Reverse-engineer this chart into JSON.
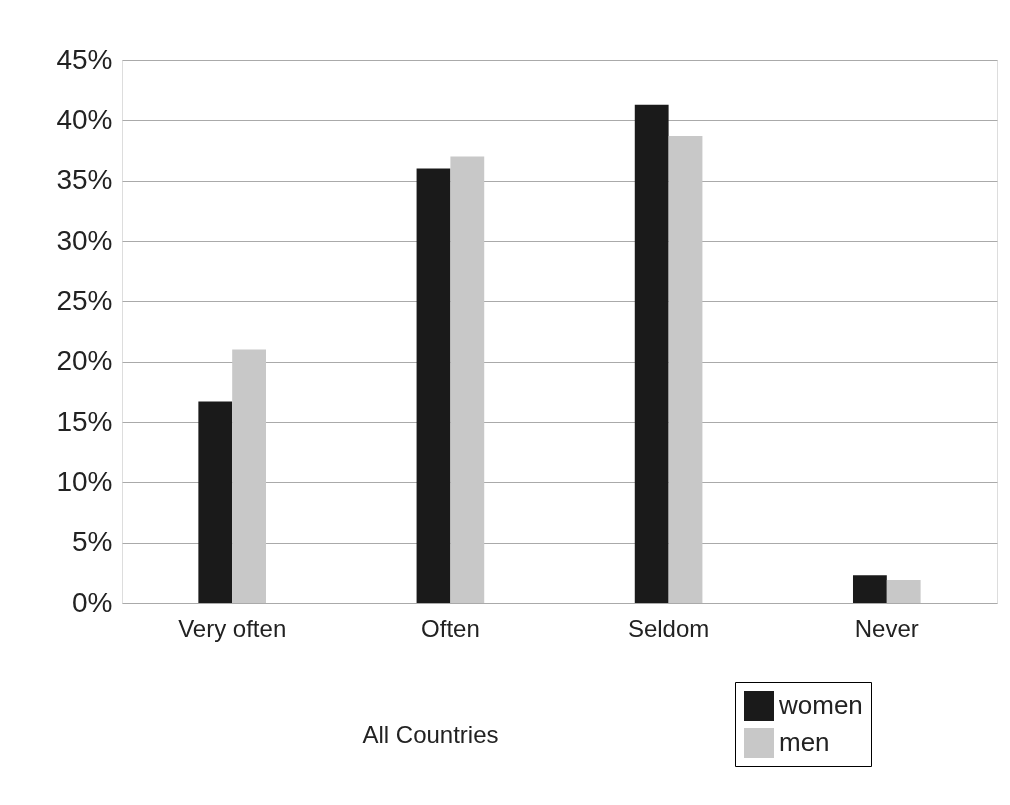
{
  "chart_data": {
    "type": "bar",
    "xlabel": "All Countries",
    "categories": [
      "Very often",
      "Often",
      "Seldom",
      "Never"
    ],
    "series": [
      {
        "name": "women",
        "color": "#1a1a1a",
        "values": [
          16.7,
          36.0,
          41.3,
          2.3
        ]
      },
      {
        "name": "men",
        "color": "#c8c8c8",
        "values": [
          21.0,
          37.0,
          38.7,
          1.9
        ]
      }
    ],
    "ylim": [
      0,
      45
    ],
    "yticks": [
      {
        "value": 0,
        "label": "0%"
      },
      {
        "value": 5,
        "label": "5%"
      },
      {
        "value": 10,
        "label": "10%"
      },
      {
        "value": 15,
        "label": "15%"
      },
      {
        "value": 20,
        "label": "20%"
      },
      {
        "value": 25,
        "label": "25%"
      },
      {
        "value": 30,
        "label": "30%"
      },
      {
        "value": 35,
        "label": "35%"
      },
      {
        "value": 40,
        "label": "40%"
      },
      {
        "value": 45,
        "label": "45%"
      }
    ],
    "grid": "y",
    "legend": "bottom right"
  }
}
